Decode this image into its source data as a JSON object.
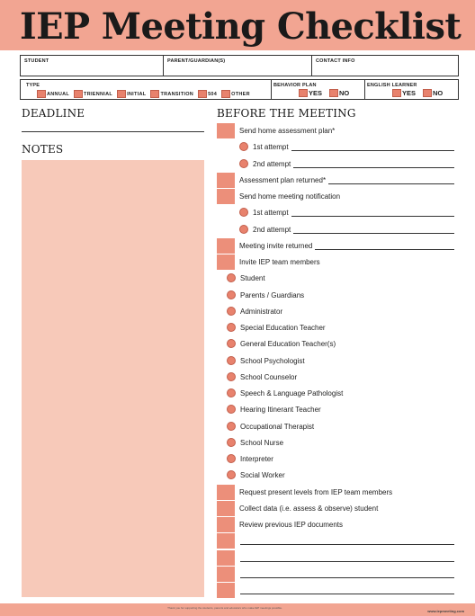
{
  "title": "IEP Meeting Checklist",
  "info": {
    "student": "STUDENT",
    "parent": "PARENT/GUARDIAN(S)",
    "contact": "CONTACT INFO",
    "type_label": "TYPE",
    "type_options": [
      "ANNUAL",
      "TRIENNIAL",
      "INITIAL",
      "TRANSITION",
      "504",
      "OTHER"
    ],
    "behavior_plan": "BEHAVIOR PLAN",
    "english_learner": "ENGLISH LEARNER",
    "yes": "YES",
    "no": "NO"
  },
  "deadline": "DEADLINE",
  "notes": "NOTES",
  "before": "BEFORE THE MEETING",
  "checklist": [
    {
      "kind": "sq",
      "text": "Send home assessment plan*"
    },
    {
      "kind": "circ-in",
      "text": "1st attempt",
      "line": true
    },
    {
      "kind": "circ-in",
      "text": "2nd attempt",
      "line": true
    },
    {
      "kind": "sq",
      "text": "Assessment plan returned*",
      "line": true
    },
    {
      "kind": "sq",
      "text": "Send home meeting notification"
    },
    {
      "kind": "circ-in",
      "text": "1st attempt",
      "line": true
    },
    {
      "kind": "circ-in",
      "text": "2nd attempt",
      "line": true
    },
    {
      "kind": "sq",
      "text": "Meeting invite returned",
      "line": true
    },
    {
      "kind": "sq",
      "text": "Invite IEP team members"
    },
    {
      "kind": "circ",
      "text": "Student"
    },
    {
      "kind": "circ",
      "text": "Parents / Guardians"
    },
    {
      "kind": "circ",
      "text": "Administrator"
    },
    {
      "kind": "circ",
      "text": "Special Education Teacher"
    },
    {
      "kind": "circ",
      "text": "General Education Teacher(s)"
    },
    {
      "kind": "circ",
      "text": "School Psychologist"
    },
    {
      "kind": "circ",
      "text": "School Counselor"
    },
    {
      "kind": "circ",
      "text": "Speech & Language Pathologist"
    },
    {
      "kind": "circ",
      "text": "Hearing Itinerant Teacher"
    },
    {
      "kind": "circ",
      "text": "Occupational Therapist"
    },
    {
      "kind": "circ",
      "text": "School Nurse"
    },
    {
      "kind": "circ",
      "text": "Interpreter"
    },
    {
      "kind": "circ",
      "text": "Social Worker"
    },
    {
      "kind": "sq",
      "text": "Request present levels from IEP team members"
    },
    {
      "kind": "sq",
      "text": "Collect data (i.e. assess & observe) student"
    },
    {
      "kind": "sq",
      "text": "Review previous IEP documents"
    },
    {
      "kind": "sq-blank",
      "text": ""
    },
    {
      "kind": "sq-blank",
      "text": ""
    },
    {
      "kind": "sq-blank",
      "text": ""
    },
    {
      "kind": "sq-blank",
      "text": ""
    }
  ],
  "footer": "Thank you for supporting the students, parents and educators who make IEP meetings possible.",
  "footer_url": "www.iepmeeting.com",
  "colors": {
    "accent": "#f2a592",
    "box": "#ec8f7a",
    "notes_bg": "#f7c9b9"
  }
}
